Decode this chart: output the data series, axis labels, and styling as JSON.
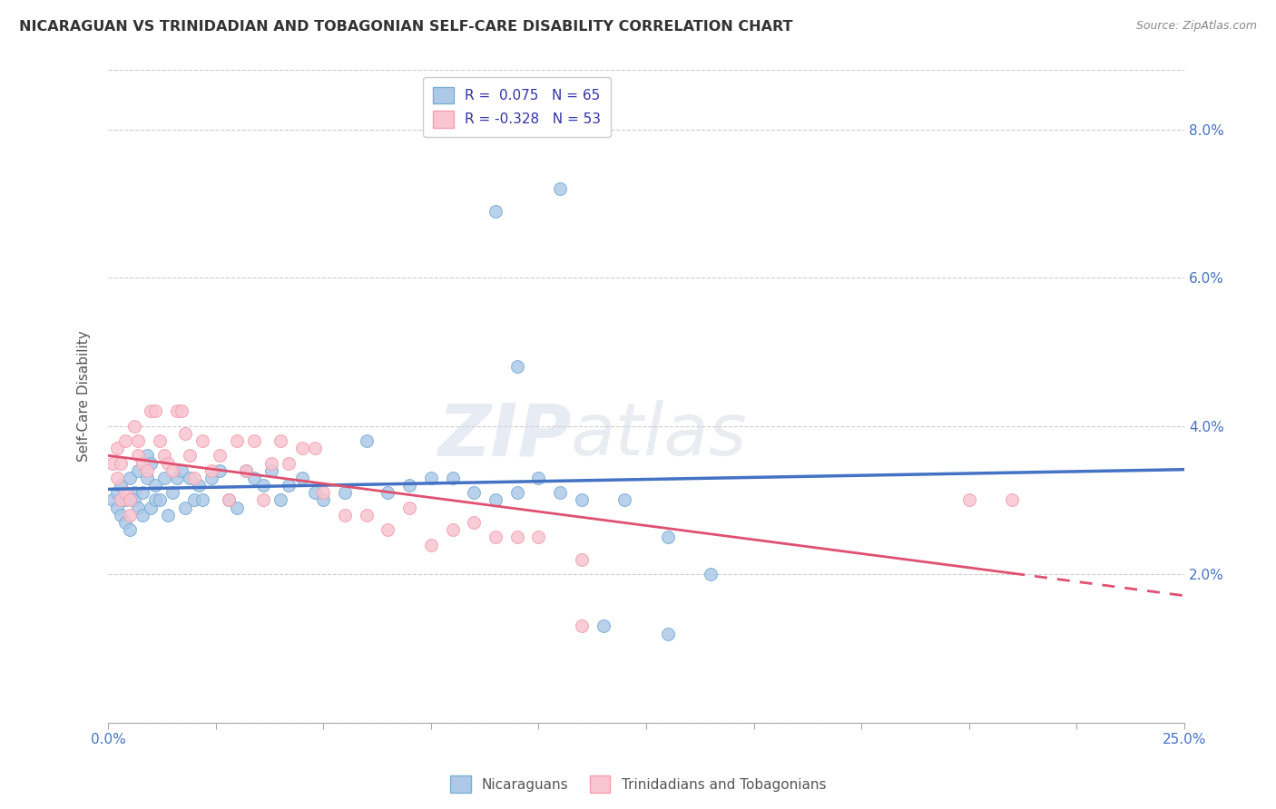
{
  "title": "NICARAGUAN VS TRINIDADIAN AND TOBAGONIAN SELF-CARE DISABILITY CORRELATION CHART",
  "source": "Source: ZipAtlas.com",
  "ylabel": "Self-Care Disability",
  "yticks": [
    0.02,
    0.04,
    0.06,
    0.08
  ],
  "ytick_labels": [
    "2.0%",
    "4.0%",
    "6.0%",
    "8.0%"
  ],
  "xlim": [
    0.0,
    0.25
  ],
  "ylim": [
    0.0,
    0.088
  ],
  "blue_R": 0.075,
  "blue_N": 65,
  "pink_R": -0.328,
  "pink_N": 53,
  "blue_color": "#7bafd4",
  "blue_fill": "#aec9e8",
  "pink_color": "#f4a0b0",
  "pink_fill": "#f8c5d0",
  "blue_line_color": "#4472c4",
  "pink_line_color": "#e05070",
  "legend_label_blue": "Nicaraguans",
  "legend_label_pink": "Trinidadians and Tobagonians",
  "watermark_zip": "ZIP",
  "watermark_atlas": "atlas",
  "blue_x": [
    0.001,
    0.002,
    0.002,
    0.003,
    0.003,
    0.004,
    0.004,
    0.005,
    0.005,
    0.006,
    0.006,
    0.007,
    0.007,
    0.008,
    0.008,
    0.009,
    0.009,
    0.01,
    0.01,
    0.011,
    0.011,
    0.012,
    0.013,
    0.014,
    0.015,
    0.016,
    0.017,
    0.018,
    0.019,
    0.02,
    0.021,
    0.022,
    0.024,
    0.026,
    0.028,
    0.03,
    0.032,
    0.034,
    0.036,
    0.038,
    0.04,
    0.042,
    0.045,
    0.048,
    0.05,
    0.055,
    0.06,
    0.065,
    0.07,
    0.075,
    0.08,
    0.085,
    0.09,
    0.095,
    0.1,
    0.105,
    0.11,
    0.12,
    0.13,
    0.14,
    0.095,
    0.09,
    0.105,
    0.115,
    0.13
  ],
  "blue_y": [
    0.03,
    0.031,
    0.029,
    0.028,
    0.032,
    0.03,
    0.027,
    0.026,
    0.033,
    0.031,
    0.03,
    0.034,
    0.029,
    0.028,
    0.031,
    0.033,
    0.036,
    0.029,
    0.035,
    0.03,
    0.032,
    0.03,
    0.033,
    0.028,
    0.031,
    0.033,
    0.034,
    0.029,
    0.033,
    0.03,
    0.032,
    0.03,
    0.033,
    0.034,
    0.03,
    0.029,
    0.034,
    0.033,
    0.032,
    0.034,
    0.03,
    0.032,
    0.033,
    0.031,
    0.03,
    0.031,
    0.038,
    0.031,
    0.032,
    0.033,
    0.033,
    0.031,
    0.03,
    0.031,
    0.033,
    0.031,
    0.03,
    0.03,
    0.025,
    0.02,
    0.048,
    0.069,
    0.072,
    0.013,
    0.012
  ],
  "pink_x": [
    0.001,
    0.002,
    0.002,
    0.003,
    0.003,
    0.004,
    0.004,
    0.005,
    0.005,
    0.006,
    0.007,
    0.007,
    0.008,
    0.009,
    0.01,
    0.011,
    0.012,
    0.013,
    0.014,
    0.015,
    0.016,
    0.017,
    0.018,
    0.019,
    0.02,
    0.022,
    0.024,
    0.026,
    0.028,
    0.03,
    0.032,
    0.034,
    0.036,
    0.038,
    0.04,
    0.042,
    0.045,
    0.048,
    0.05,
    0.055,
    0.06,
    0.065,
    0.07,
    0.075,
    0.08,
    0.085,
    0.09,
    0.095,
    0.1,
    0.11,
    0.2,
    0.21,
    0.11
  ],
  "pink_y": [
    0.035,
    0.037,
    0.033,
    0.035,
    0.03,
    0.038,
    0.031,
    0.028,
    0.03,
    0.04,
    0.038,
    0.036,
    0.035,
    0.034,
    0.042,
    0.042,
    0.038,
    0.036,
    0.035,
    0.034,
    0.042,
    0.042,
    0.039,
    0.036,
    0.033,
    0.038,
    0.034,
    0.036,
    0.03,
    0.038,
    0.034,
    0.038,
    0.03,
    0.035,
    0.038,
    0.035,
    0.037,
    0.037,
    0.031,
    0.028,
    0.028,
    0.026,
    0.029,
    0.024,
    0.026,
    0.027,
    0.025,
    0.025,
    0.025,
    0.022,
    0.03,
    0.03,
    0.013
  ]
}
